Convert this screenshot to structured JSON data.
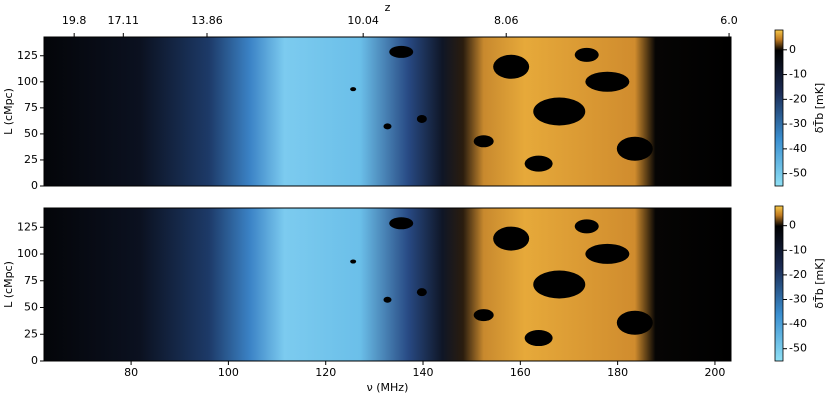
{
  "chart_data": [
    {
      "type": "heatmap",
      "xlim": [
        62.1,
        203.3
      ],
      "ylim": [
        0,
        143
      ],
      "yticks": [
        0,
        25,
        50,
        75,
        100,
        125
      ],
      "ylabel": "L (cMpc)",
      "x2label": "z",
      "x2ticks": [
        {
          "value": 68.3,
          "label": "19.8"
        },
        {
          "value": 78.4,
          "label": "17.11"
        },
        {
          "value": 95.6,
          "label": "13.86"
        },
        {
          "value": 127.7,
          "label": "10.04"
        },
        {
          "value": 157.1,
          "label": "8.06"
        },
        {
          "value": 202.9,
          "label": "6.0"
        }
      ],
      "zlim": [
        -55,
        8
      ],
      "zticks": [
        -50,
        -40,
        -30,
        -20,
        -10,
        0
      ],
      "zlabel": "δT̄b [mK]"
    },
    {
      "type": "heatmap",
      "xlim": [
        62.1,
        203.3
      ],
      "xticks": [
        80,
        100,
        120,
        140,
        160,
        180,
        200
      ],
      "xlabel": "ν (MHz)",
      "ylim": [
        0,
        143
      ],
      "yticks": [
        0,
        25,
        50,
        75,
        100,
        125
      ],
      "ylabel": "L (cMpc)",
      "zlim": [
        -55,
        8
      ],
      "zticks": [
        -50,
        -40,
        -30,
        -20,
        -10,
        0
      ],
      "zlabel": "δT̄b [mK]"
    }
  ]
}
